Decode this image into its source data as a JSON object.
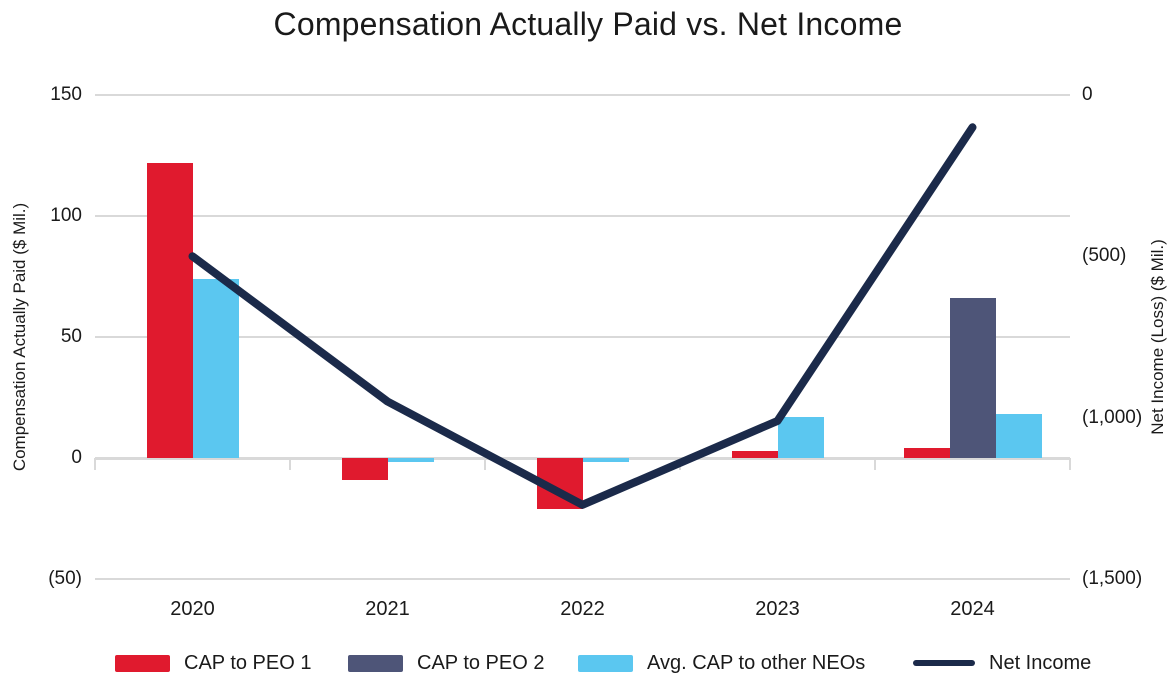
{
  "title": "Compensation Actually Paid vs. Net Income",
  "left_axis": {
    "title": "Compensation Actually Paid ($ Mil.)",
    "tick_labels": [
      "150",
      "100",
      "50",
      "0",
      "(50)"
    ],
    "tick_values": [
      150,
      100,
      50,
      0,
      -50
    ],
    "max": 150,
    "min": -50
  },
  "right_axis": {
    "title": "Net Income (Loss) ($ Mil.)",
    "tick_labels": [
      "0",
      "(500)",
      "(1,000)",
      "(1,500)"
    ],
    "tick_values": [
      0,
      -500,
      -1000,
      -1500
    ],
    "max": 0,
    "min": -1500
  },
  "chart_data": {
    "type": "combo-bar-line",
    "categories": [
      "2020",
      "2021",
      "2022",
      "2023",
      "2024"
    ],
    "series": [
      {
        "name": "CAP to PEO 1",
        "key": "cap-peo-1",
        "type": "bar",
        "axis": "left",
        "color": "#e01a2e",
        "values": [
          122,
          -9,
          -21,
          3,
          4
        ]
      },
      {
        "name": "CAP to PEO 2",
        "key": "cap-peo-2",
        "type": "bar",
        "axis": "left",
        "color": "#4e5578",
        "values": [
          null,
          null,
          null,
          null,
          66
        ]
      },
      {
        "name": "Avg. CAP to other NEOs",
        "key": "avg-cap-other-neos",
        "type": "bar",
        "axis": "left",
        "color": "#5bc7f0",
        "values": [
          74,
          -1.5,
          -1.5,
          17,
          18
        ]
      },
      {
        "name": "Net Income",
        "key": "net-income",
        "type": "line",
        "axis": "right",
        "color": "#1b2a4a",
        "values": [
          -500,
          -950,
          -1270,
          -1010,
          -100
        ]
      }
    ],
    "title": "Compensation Actually Paid vs. Net Income",
    "left_ylim": [
      -50,
      150
    ],
    "right_ylim": [
      -1500,
      0
    ],
    "grid": true,
    "legend_position": "bottom"
  },
  "colors": {
    "grid": "#d9d9d9",
    "text": "#1a1a1a",
    "cap_peo_1": "#e01a2e",
    "cap_peo_2": "#4e5578",
    "avg_cap_other_neos": "#5bc7f0",
    "net_income": "#1b2a4a"
  }
}
